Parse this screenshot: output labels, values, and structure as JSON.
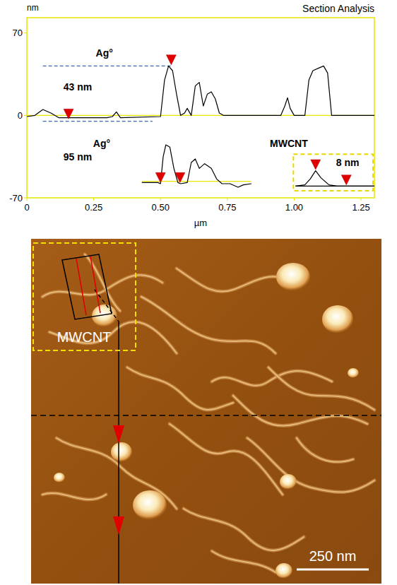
{
  "chart_data": {
    "type": "line",
    "title": "Section Analysis",
    "x_label": "µm",
    "y_label": "nm",
    "xlim": [
      0,
      1.3
    ],
    "ylim": [
      -70,
      83
    ],
    "xticks": [
      0,
      0.25,
      {
        "value": 0.5,
        "label": "0.50"
      },
      0.75,
      {
        "value": 1,
        "label": "1.00"
      },
      1.25
    ],
    "yticks": [
      -70,
      0,
      70
    ],
    "grid": false,
    "series": [
      {
        "color": "#000000",
        "line_style": "solid",
        "x": [
          0,
          0.03,
          0.06,
          0.09,
          0.12,
          0.2,
          0.3,
          0.32,
          0.335,
          0.35,
          0.5,
          0.515,
          0.53,
          0.545,
          0.56,
          0.575,
          0.59,
          0.6,
          0.615,
          0.63,
          0.645,
          0.66,
          0.675,
          0.69,
          0.705,
          0.72,
          0.735,
          0.95,
          0.965,
          0.975,
          0.985,
          1.0,
          1.04,
          1.055,
          1.07,
          1.09,
          1.11,
          1.125,
          1.14,
          1.16,
          1.3
        ],
        "values": [
          -1,
          0,
          5,
          2,
          -2,
          -2,
          -2,
          -1,
          3,
          -2,
          -1,
          30,
          42,
          38,
          18,
          0,
          2,
          6,
          0,
          25,
          28,
          8,
          18,
          20,
          14,
          2,
          0,
          0,
          8,
          15,
          6,
          0,
          0,
          30,
          38,
          40,
          42,
          36,
          0,
          0,
          0
        ]
      },
      {
        "color": "#000000",
        "line_style": "solid",
        "x": [
          0.43,
          0.49,
          0.5,
          0.51,
          0.52,
          0.535,
          0.55,
          0.565,
          0.575,
          0.6,
          0.615,
          0.63,
          0.645,
          0.665,
          0.69,
          0.71,
          0.73,
          0.76,
          0.79,
          0.81,
          0.84
        ],
        "values": [
          -57,
          -57,
          -58,
          -35,
          -25,
          -27,
          -45,
          -57,
          -58,
          -57,
          -40,
          -37,
          -45,
          -41,
          -45,
          -54,
          -58,
          -58,
          -61,
          -59,
          -58
        ]
      },
      {
        "color": "#000000",
        "line_style": "solid",
        "x": [
          1.005,
          1.04,
          1.06,
          1.08,
          1.1,
          1.13,
          1.16,
          1.3
        ],
        "values": [
          -60,
          -59,
          -54,
          -47,
          -53,
          -59,
          -60,
          -60
        ]
      }
    ],
    "baselines": [
      {
        "y": 0,
        "x": [
          0,
          1.3
        ],
        "color": "#e6e600"
      },
      {
        "y": -56,
        "x": [
          0.43,
          0.84
        ],
        "color": "#e6e600"
      },
      {
        "y": -60,
        "x": [
          1.005,
          1.3
        ],
        "color": "#000000"
      }
    ],
    "guides": [
      {
        "y": 42,
        "x": [
          0.06,
          0.54
        ],
        "color": "#3b6bb5"
      },
      {
        "y": -5,
        "x": [
          0.06,
          0.47
        ],
        "color": "#3b6bb5"
      }
    ],
    "markers": [
      {
        "x": 0.156,
        "y": -3
      },
      {
        "x": 0.54,
        "y": 43
      },
      {
        "x": 0.5,
        "y": -57
      },
      {
        "x": 0.573,
        "y": -57
      },
      {
        "x": 1.08,
        "y": -46
      },
      {
        "x": 1.195,
        "y": -59
      }
    ],
    "marker": "triangle",
    "annotations": [
      {
        "text": "Ag°",
        "x": 0.29,
        "y": 50
      },
      {
        "text": "43 nm",
        "x": 0.19,
        "y": 21
      },
      {
        "text": "Ag°",
        "x": 0.28,
        "y": -27
      },
      {
        "text": "95 nm",
        "x": 0.19,
        "y": -38
      },
      {
        "text": "MWCNT",
        "x": 0.98,
        "y": -27
      },
      {
        "text": "8 nm",
        "x": 1.2,
        "y": -43
      }
    ],
    "inset_box": {
      "x": [
        0.997,
        1.295
      ],
      "y": [
        -64,
        -33
      ]
    }
  },
  "micrograph": {
    "region_label": "MWCNT",
    "scale_bar": "250 nm"
  }
}
